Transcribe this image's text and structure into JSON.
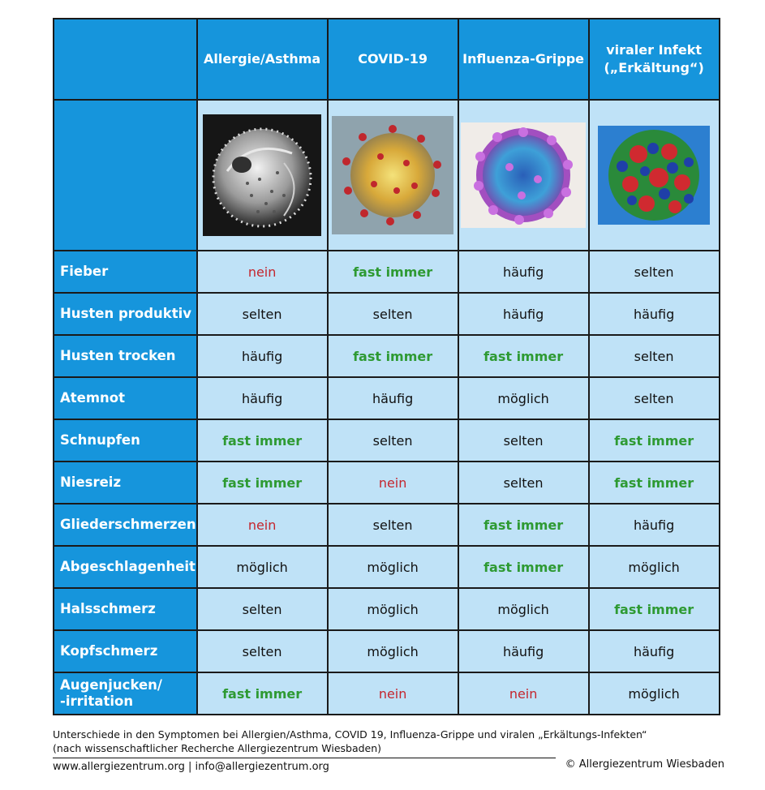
{
  "columns": [
    {
      "label": "Allergie/Asthma",
      "image_icon": "pollen-grain-image"
    },
    {
      "label": "COVID-19",
      "image_icon": "coronavirus-image"
    },
    {
      "label": "Influenza-Grippe",
      "image_icon": "influenza-virus-image"
    },
    {
      "label": "viraler Infekt\n(„Erkältung“)",
      "image_icon": "rhinovirus-image"
    }
  ],
  "colors": {
    "header_bg": "#1695dc",
    "cell_bg": "#bfe2f7",
    "value_red": "#c4262e",
    "value_green": "#2e9a33",
    "value_black": "#111111"
  },
  "rows": [
    {
      "symptom": "Fieber",
      "values": [
        {
          "text": "nein",
          "tone": "red"
        },
        {
          "text": "fast immer",
          "tone": "green"
        },
        {
          "text": "häufig",
          "tone": "black"
        },
        {
          "text": "selten",
          "tone": "black"
        }
      ]
    },
    {
      "symptom": "Husten produktiv",
      "values": [
        {
          "text": "selten",
          "tone": "black"
        },
        {
          "text": "selten",
          "tone": "black"
        },
        {
          "text": "häufig",
          "tone": "black"
        },
        {
          "text": "häufig",
          "tone": "black"
        }
      ]
    },
    {
      "symptom": "Husten trocken",
      "values": [
        {
          "text": "häufig",
          "tone": "black"
        },
        {
          "text": "fast immer",
          "tone": "green"
        },
        {
          "text": "fast immer",
          "tone": "green"
        },
        {
          "text": "selten",
          "tone": "black"
        }
      ]
    },
    {
      "symptom": "Atemnot",
      "values": [
        {
          "text": "häufig",
          "tone": "black"
        },
        {
          "text": "häufig",
          "tone": "black"
        },
        {
          "text": "möglich",
          "tone": "black"
        },
        {
          "text": "selten",
          "tone": "black"
        }
      ]
    },
    {
      "symptom": "Schnupfen",
      "values": [
        {
          "text": "fast immer",
          "tone": "green"
        },
        {
          "text": "selten",
          "tone": "black"
        },
        {
          "text": "selten",
          "tone": "black"
        },
        {
          "text": "fast immer",
          "tone": "green"
        }
      ]
    },
    {
      "symptom": "Niesreiz",
      "values": [
        {
          "text": "fast immer",
          "tone": "green"
        },
        {
          "text": "nein",
          "tone": "red"
        },
        {
          "text": "selten",
          "tone": "black"
        },
        {
          "text": "fast immer",
          "tone": "green"
        }
      ]
    },
    {
      "symptom": "Gliederschmerzen",
      "values": [
        {
          "text": "nein",
          "tone": "red"
        },
        {
          "text": "selten",
          "tone": "black"
        },
        {
          "text": "fast immer",
          "tone": "green"
        },
        {
          "text": "häufig",
          "tone": "black"
        }
      ]
    },
    {
      "symptom": "Abgeschlagenheit",
      "values": [
        {
          "text": "möglich",
          "tone": "black"
        },
        {
          "text": "möglich",
          "tone": "black"
        },
        {
          "text": "fast immer",
          "tone": "green"
        },
        {
          "text": "möglich",
          "tone": "black"
        }
      ]
    },
    {
      "symptom": "Halsschmerz",
      "values": [
        {
          "text": "selten",
          "tone": "black"
        },
        {
          "text": "möglich",
          "tone": "black"
        },
        {
          "text": "möglich",
          "tone": "black"
        },
        {
          "text": "fast immer",
          "tone": "green"
        }
      ]
    },
    {
      "symptom": "Kopfschmerz",
      "values": [
        {
          "text": "selten",
          "tone": "black"
        },
        {
          "text": "möglich",
          "tone": "black"
        },
        {
          "text": "häufig",
          "tone": "black"
        },
        {
          "text": "häufig",
          "tone": "black"
        }
      ]
    },
    {
      "symptom": "Augenjucken/\n-irritation",
      "values": [
        {
          "text": "fast immer",
          "tone": "green"
        },
        {
          "text": "nein",
          "tone": "red"
        },
        {
          "text": "nein",
          "tone": "red"
        },
        {
          "text": "möglich",
          "tone": "black"
        }
      ]
    }
  ],
  "caption": {
    "line1": "Unterschiede in den Symptomen bei Allergien/Asthma, COVID 19, Influenza-Grippe und viralen „Erkältungs-Infekten“",
    "line2": "(nach wissenschaftlicher Recherche Allergiezentrum Wiesbaden)"
  },
  "footer": {
    "contact": "www.allergiezentrum.org | info@allergiezentrum.org",
    "copyright": "© Allergiezentrum Wiesbaden"
  }
}
